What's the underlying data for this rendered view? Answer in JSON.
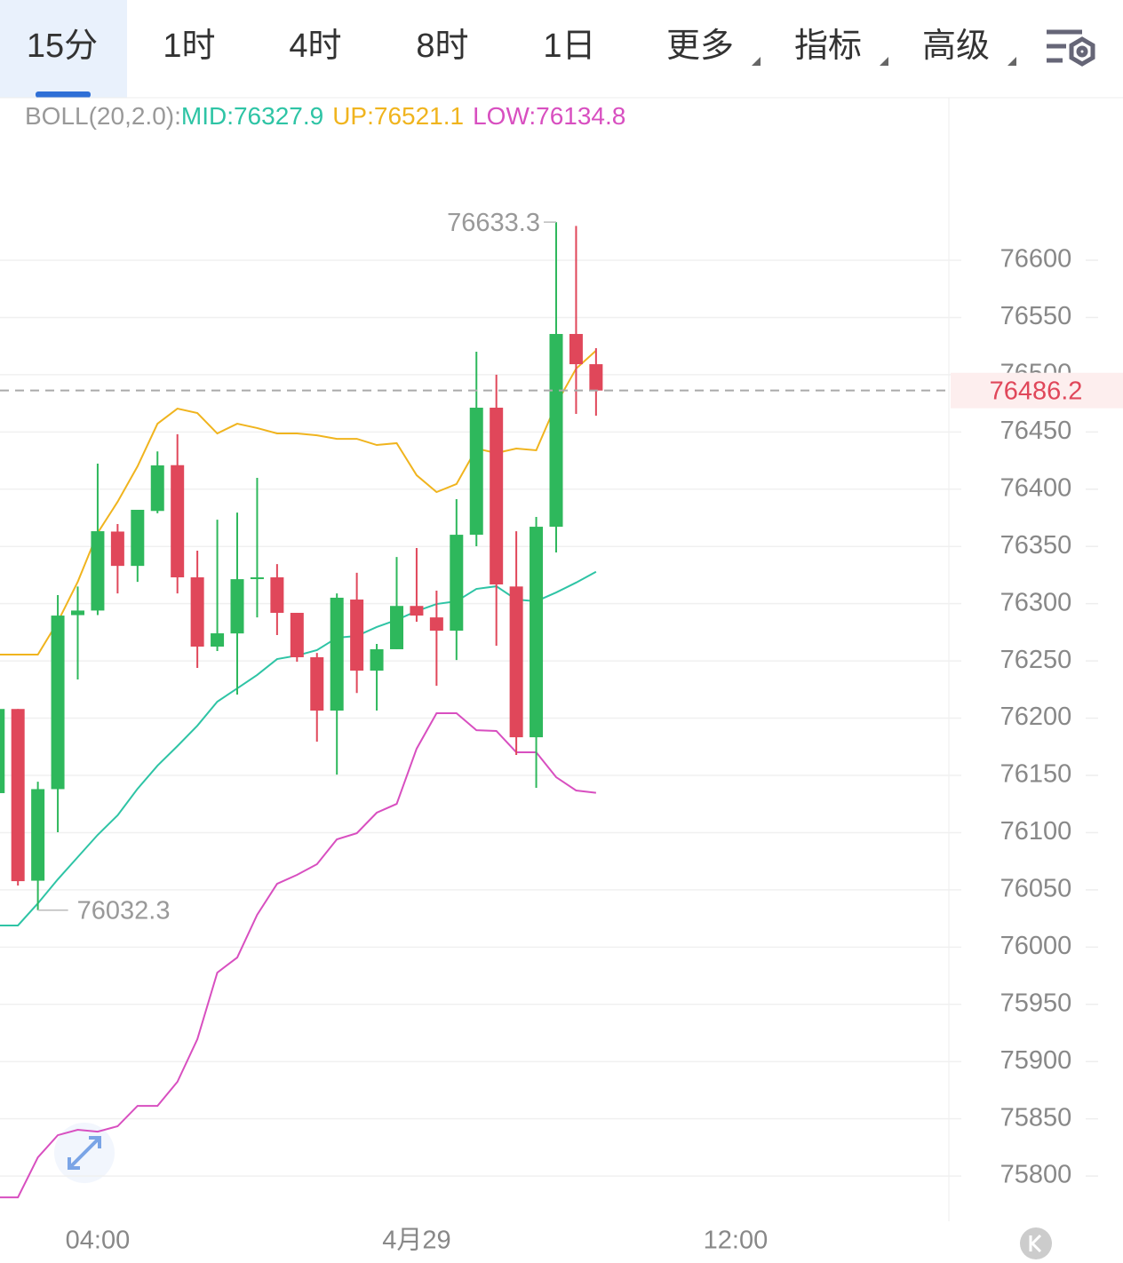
{
  "tabs": [
    "15分",
    "1时",
    "4时",
    "8时",
    "1日",
    "更多",
    "指标",
    "高级"
  ],
  "chart_data": {
    "type": "candlestick",
    "up_color": "#2eb85c",
    "down_color": "#e0475a",
    "open": [
      76134.5,
      76208,
      76058,
      76138,
      76290,
      76294,
      76363,
      76333,
      76381,
      76421,
      76323,
      76262.5,
      76274,
      76322,
      76323,
      76292,
      76253.2,
      76206.6,
      76303.6,
      76241.5,
      76260.2,
      76298,
      76288,
      76276.4,
      76360.2,
      76471.2,
      76315,
      76183.3,
      76367.2,
      76535.6,
      76509.2
    ],
    "high": [
      76208,
      76208,
      76144.5,
      76307.5,
      76315,
      76422.3,
      76369.6,
      76382,
      76433,
      76448,
      76346.3,
      76373.4,
      76379.6,
      76409.9,
      76334.6,
      76292,
      76257,
      76309,
      76327,
      76264.8,
      76340.8,
      76348.6,
      76311.4,
      76391.3,
      76520.1,
      76500,
      76363.3,
      76375.8,
      76633.3,
      76630,
      76523.2
    ],
    "low": [
      76134.5,
      76053.8,
      76032.3,
      76100.3,
      76233.8,
      76290,
      76309,
      76319,
      76379,
      76309,
      76243.9,
      76258.6,
      76220.6,
      76288,
      76272.6,
      76249.3,
      76179.5,
      76150.7,
      76222,
      76206.6,
      76260.2,
      76284.2,
      76228.3,
      76250.8,
      76350.2,
      76263.3,
      76167.8,
      76139.1,
      76344.7,
      76465.8,
      76464.2
    ],
    "close": [
      76208,
      76057.6,
      76138,
      76289.6,
      76294,
      76363.3,
      76333,
      76382,
      76420.8,
      76323,
      76262.5,
      76274.1,
      76321.4,
      76323,
      76292,
      76253.2,
      76206.6,
      76305.2,
      76241.5,
      76260.2,
      76298,
      76289.6,
      76276.4,
      76360.2,
      76471.2,
      76316.8,
      76183.3,
      76367.2,
      76535.6,
      76509.2,
      76486.2
    ],
    "indicator": {
      "label": "BOLL(20,2.0):",
      "label_color": "#999999",
      "series": [
        {
          "name": "MID:76327.9",
          "color": "#2ec4a5",
          "values": [
            76018.9,
            76018.9,
            76038.2,
            76059.2,
            76078.6,
            76098,
            76115.1,
            76138.3,
            76158.5,
            76175.6,
            76193.4,
            76214.4,
            76226,
            76237.7,
            76251.6,
            76254.7,
            76259.4,
            76270.2,
            76271.8,
            76279.6,
            76285.8,
            76293.5,
            76299.7,
            76302.1,
            76312.9,
            76315.2,
            76303.6,
            76302.1,
            76309.8,
            76318.4,
            76327.9
          ]
        },
        {
          "name": "UP:76521.1",
          "color": "#f0b41e",
          "values": [
            76255.5,
            76255.5,
            76255.5,
            76284.2,
            76319.1,
            76361.8,
            76389,
            76420,
            76457.2,
            76470.4,
            76466.5,
            76448.7,
            76457.2,
            76453.4,
            76448.7,
            76448.7,
            76447.1,
            76444,
            76444,
            76438.6,
            76440.2,
            76412.2,
            76397.5,
            76404.5,
            76435.5,
            76431.6,
            76435.5,
            76434,
            76474.3,
            76505.3,
            76521.1
          ]
        },
        {
          "name": "LOW:76134.8",
          "color": "#d84fc0",
          "values": [
            75781.4,
            75781.4,
            75816.3,
            75835.7,
            75840.4,
            75838.8,
            75843.5,
            75861.3,
            75861.3,
            75882.3,
            75919.5,
            75977.7,
            75990.9,
            76028.2,
            76055.3,
            76063.1,
            76072.4,
            76094.1,
            76099.5,
            76117.4,
            76125.1,
            76173.3,
            76204.3,
            76204.3,
            76189.5,
            76188.8,
            76170.2,
            76170.2,
            76148.4,
            76136.8,
            76134.8
          ]
        }
      ]
    },
    "max_label": {
      "value": 76633.3,
      "candle": 28
    },
    "min_label": {
      "value": 76032.3,
      "candle": 2
    },
    "last_price": 76486.2,
    "ylim": [
      75760.5,
      76742
    ],
    "yticks": [
      75800,
      75850,
      75900,
      75950,
      76000,
      76050,
      76100,
      76150,
      76200,
      76250,
      76300,
      76350,
      76400,
      76450,
      76500,
      76550,
      76600
    ],
    "xlim": [
      0.1,
      47.7
    ],
    "xticks": [
      {
        "value": 5,
        "label": "04:00"
      },
      {
        "value": 21,
        "label": "4月29"
      },
      {
        "value": 37,
        "label": "12:00"
      }
    ],
    "grid": true
  }
}
